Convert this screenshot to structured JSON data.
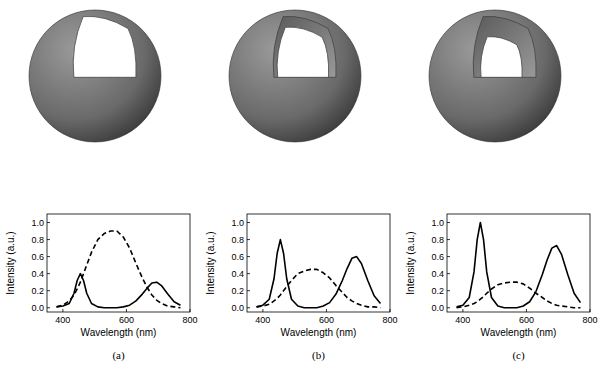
{
  "chart_data": [
    {
      "type": "line",
      "title": "(a)",
      "x_label": "Wavelength (nm)",
      "y_label": "Intensity (a.u.)",
      "xlim": [
        350,
        800
      ],
      "xticks": [
        400,
        600,
        800
      ],
      "ylim": [
        -0.05,
        1.1
      ],
      "yticks": [
        {
          "value": 0,
          "label": "0.0"
        },
        {
          "value": 0.2,
          "label": "0.2"
        },
        {
          "value": 0.4,
          "label": "0.4"
        },
        {
          "value": 0.6,
          "label": "0.6"
        },
        {
          "value": 0.8,
          "label": "0.8"
        },
        {
          "value": 1.0,
          "label": "1.0"
        }
      ],
      "x": [
        380,
        400,
        420,
        435,
        445,
        455,
        465,
        475,
        490,
        510,
        530,
        550,
        570,
        590,
        610,
        630,
        650,
        665,
        680,
        695,
        710,
        730,
        750,
        770
      ],
      "series": [
        {
          "line_style": "solid",
          "color": "#000000",
          "values": [
            0.01,
            0.02,
            0.05,
            0.17,
            0.32,
            0.4,
            0.32,
            0.17,
            0.05,
            0.01,
            0.0,
            0.0,
            0.0,
            0.01,
            0.03,
            0.08,
            0.16,
            0.23,
            0.29,
            0.3,
            0.26,
            0.16,
            0.07,
            0.03
          ]
        },
        {
          "line_style": "dashed",
          "color": "#000000",
          "values": [
            0.01,
            0.03,
            0.08,
            0.15,
            0.22,
            0.3,
            0.4,
            0.5,
            0.65,
            0.8,
            0.87,
            0.9,
            0.9,
            0.83,
            0.7,
            0.52,
            0.35,
            0.24,
            0.15,
            0.09,
            0.05,
            0.02,
            0.01,
            0.0
          ]
        }
      ]
    },
    {
      "type": "line",
      "title": "(b)",
      "x_label": "Wavelength (nm)",
      "y_label": "Intensity (a.u.)",
      "xlim": [
        350,
        800
      ],
      "xticks": [
        400,
        600,
        800
      ],
      "ylim": [
        -0.05,
        1.1
      ],
      "yticks": [
        {
          "value": 0,
          "label": "0.0"
        },
        {
          "value": 0.2,
          "label": "0.2"
        },
        {
          "value": 0.4,
          "label": "0.4"
        },
        {
          "value": 0.6,
          "label": "0.6"
        },
        {
          "value": 0.8,
          "label": "0.8"
        },
        {
          "value": 1.0,
          "label": "1.0"
        }
      ],
      "x": [
        380,
        400,
        420,
        435,
        445,
        455,
        465,
        475,
        490,
        510,
        530,
        550,
        570,
        590,
        610,
        630,
        650,
        665,
        680,
        695,
        710,
        730,
        750,
        770
      ],
      "series": [
        {
          "line_style": "solid",
          "color": "#000000",
          "values": [
            0.01,
            0.03,
            0.1,
            0.34,
            0.64,
            0.8,
            0.64,
            0.34,
            0.1,
            0.02,
            0.0,
            0.0,
            0.0,
            0.02,
            0.06,
            0.16,
            0.32,
            0.46,
            0.58,
            0.6,
            0.52,
            0.32,
            0.14,
            0.05
          ]
        },
        {
          "line_style": "dashed",
          "color": "#000000",
          "values": [
            0.01,
            0.02,
            0.04,
            0.08,
            0.11,
            0.15,
            0.2,
            0.25,
            0.32,
            0.4,
            0.43,
            0.45,
            0.45,
            0.41,
            0.35,
            0.26,
            0.18,
            0.12,
            0.08,
            0.05,
            0.03,
            0.01,
            0.01,
            0.0
          ]
        }
      ]
    },
    {
      "type": "line",
      "title": "(c)",
      "x_label": "Wavelength (nm)",
      "y_label": "Intensity (a.u.)",
      "xlim": [
        350,
        800
      ],
      "xticks": [
        400,
        600,
        800
      ],
      "ylim": [
        -0.05,
        1.1
      ],
      "yticks": [
        {
          "value": 0,
          "label": "0.0"
        },
        {
          "value": 0.2,
          "label": "0.2"
        },
        {
          "value": 0.4,
          "label": "0.4"
        },
        {
          "value": 0.6,
          "label": "0.6"
        },
        {
          "value": 0.8,
          "label": "0.8"
        },
        {
          "value": 1.0,
          "label": "1.0"
        }
      ],
      "x": [
        380,
        400,
        420,
        435,
        445,
        455,
        465,
        475,
        490,
        510,
        530,
        550,
        570,
        590,
        610,
        630,
        650,
        665,
        680,
        695,
        710,
        730,
        750,
        770
      ],
      "series": [
        {
          "line_style": "solid",
          "color": "#000000",
          "values": [
            0.01,
            0.03,
            0.12,
            0.42,
            0.8,
            1.0,
            0.8,
            0.42,
            0.12,
            0.02,
            0.0,
            0.0,
            0.0,
            0.02,
            0.07,
            0.19,
            0.39,
            0.56,
            0.7,
            0.73,
            0.63,
            0.39,
            0.17,
            0.06
          ]
        },
        {
          "line_style": "dashed",
          "color": "#000000",
          "values": [
            0.0,
            0.01,
            0.03,
            0.05,
            0.07,
            0.1,
            0.13,
            0.17,
            0.22,
            0.27,
            0.29,
            0.3,
            0.3,
            0.28,
            0.23,
            0.17,
            0.12,
            0.08,
            0.05,
            0.03,
            0.02,
            0.01,
            0.0,
            0.0
          ]
        }
      ]
    }
  ]
}
